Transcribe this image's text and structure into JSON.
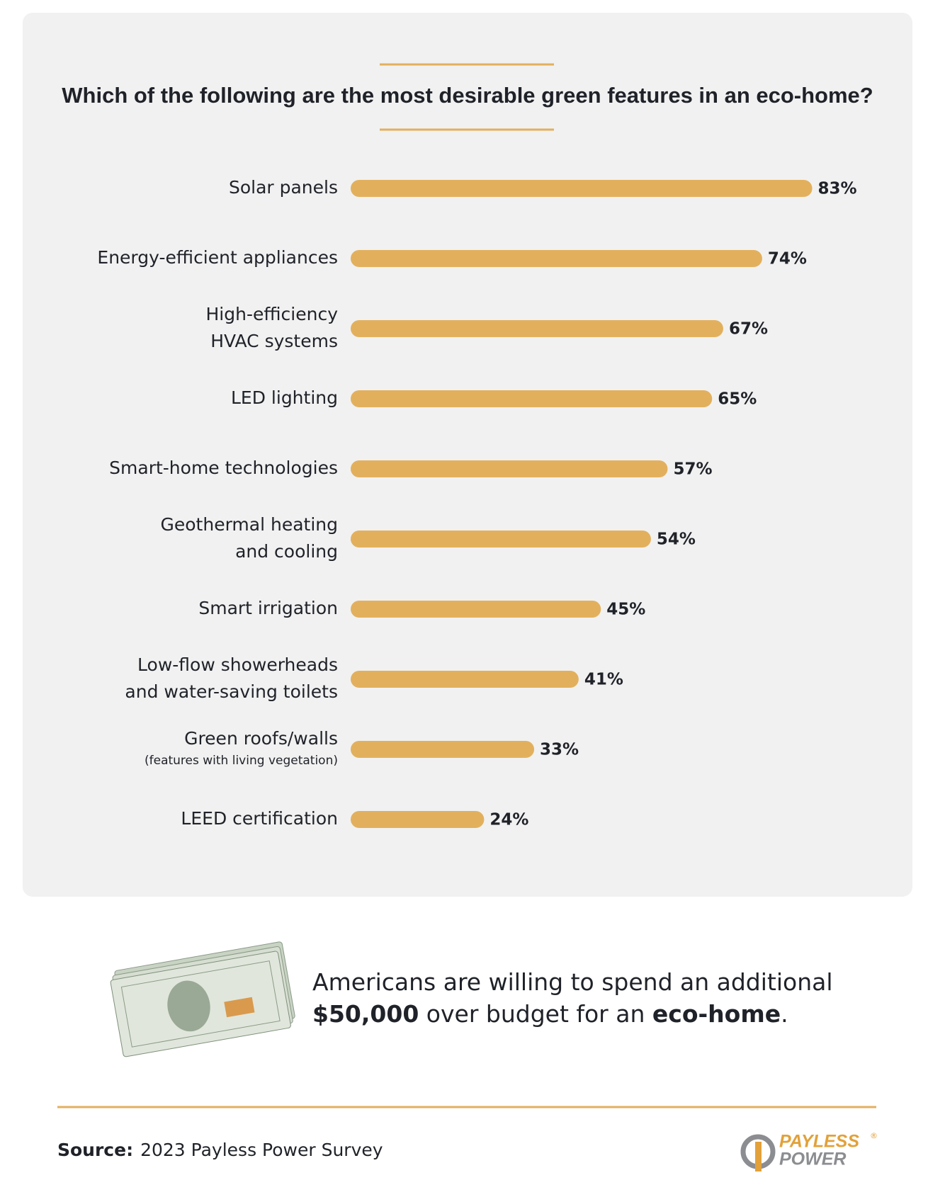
{
  "chart_data": {
    "type": "bar",
    "orientation": "horizontal",
    "title": "Which of the following are the most desirable green features in an eco-home?",
    "categories": [
      [
        "Solar panels"
      ],
      [
        "Energy-efficient appliances"
      ],
      [
        "High-efficiency",
        "HVAC systems"
      ],
      [
        "LED lighting"
      ],
      [
        "Smart-home technologies"
      ],
      [
        "Geothermal heating",
        "and cooling"
      ],
      [
        "Smart irrigation"
      ],
      [
        "Low-flow showerheads",
        "and water-saving toilets"
      ],
      [
        "Green roofs/walls"
      ],
      [
        "LEED certification"
      ]
    ],
    "category_notes": [
      null,
      null,
      null,
      null,
      null,
      null,
      null,
      null,
      "(features with living vegetation)",
      null
    ],
    "values": [
      83,
      74,
      67,
      65,
      57,
      54,
      45,
      41,
      33,
      24
    ],
    "value_labels": [
      "83%",
      "74%",
      "67%",
      "65%",
      "57%",
      "54%",
      "45%",
      "41%",
      "33%",
      "24%"
    ],
    "color": "#e2b05d"
  },
  "callout": {
    "parts": [
      {
        "text": "Americans are willing to spend an additional",
        "bold": false,
        "line": 0
      },
      {
        "text": "$50,000",
        "bold": true,
        "line": 1
      },
      {
        "text": " over budget for an ",
        "bold": false,
        "line": 1
      },
      {
        "text": "eco-home",
        "bold": true,
        "line": 1
      },
      {
        "text": ".",
        "bold": false,
        "line": 1
      }
    ]
  },
  "source": {
    "label": "Source:",
    "text": "2023 Payless Power Survey"
  },
  "logo": {
    "line1": "PAYLESS",
    "line2": "POWER",
    "mark": "®"
  }
}
